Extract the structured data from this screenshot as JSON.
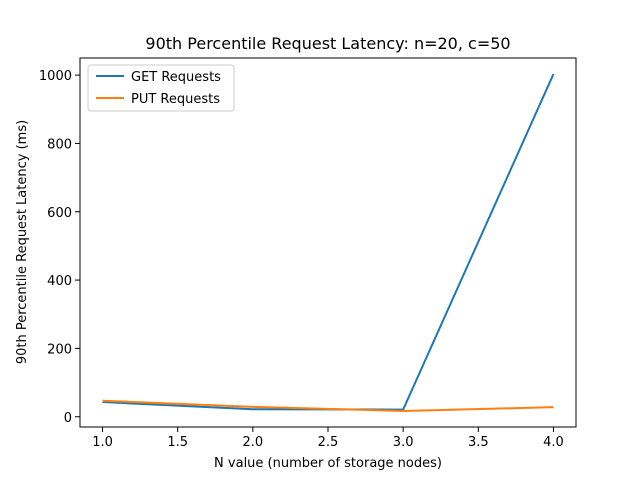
{
  "chart_data": {
    "type": "line",
    "title": "90th Percentile Request Latency: n=20, c=50",
    "xlabel": "N value (number of storage nodes)",
    "ylabel": "90th Percentile Request Latency (ms)",
    "x": [
      1.0,
      2.0,
      3.0,
      4.0
    ],
    "xlim": [
      0.85,
      4.15
    ],
    "ylim": [
      -30,
      1050
    ],
    "xticks": [
      1.0,
      1.5,
      2.0,
      2.5,
      3.0,
      3.5,
      4.0
    ],
    "xtick_labels": [
      "1.0",
      "1.5",
      "2.0",
      "2.5",
      "3.0",
      "3.5",
      "4.0"
    ],
    "yticks": [
      0,
      200,
      400,
      600,
      800,
      1000
    ],
    "ytick_labels": [
      "0",
      "200",
      "400",
      "600",
      "800",
      "1000"
    ],
    "grid": false,
    "legend_position": "top-left",
    "series": [
      {
        "name": "GET Requests",
        "color": "#1f77b4",
        "values": [
          43,
          22,
          21,
          1003
        ]
      },
      {
        "name": "PUT Requests",
        "color": "#ff7f0e",
        "values": [
          47,
          29,
          17,
          28
        ]
      }
    ]
  }
}
